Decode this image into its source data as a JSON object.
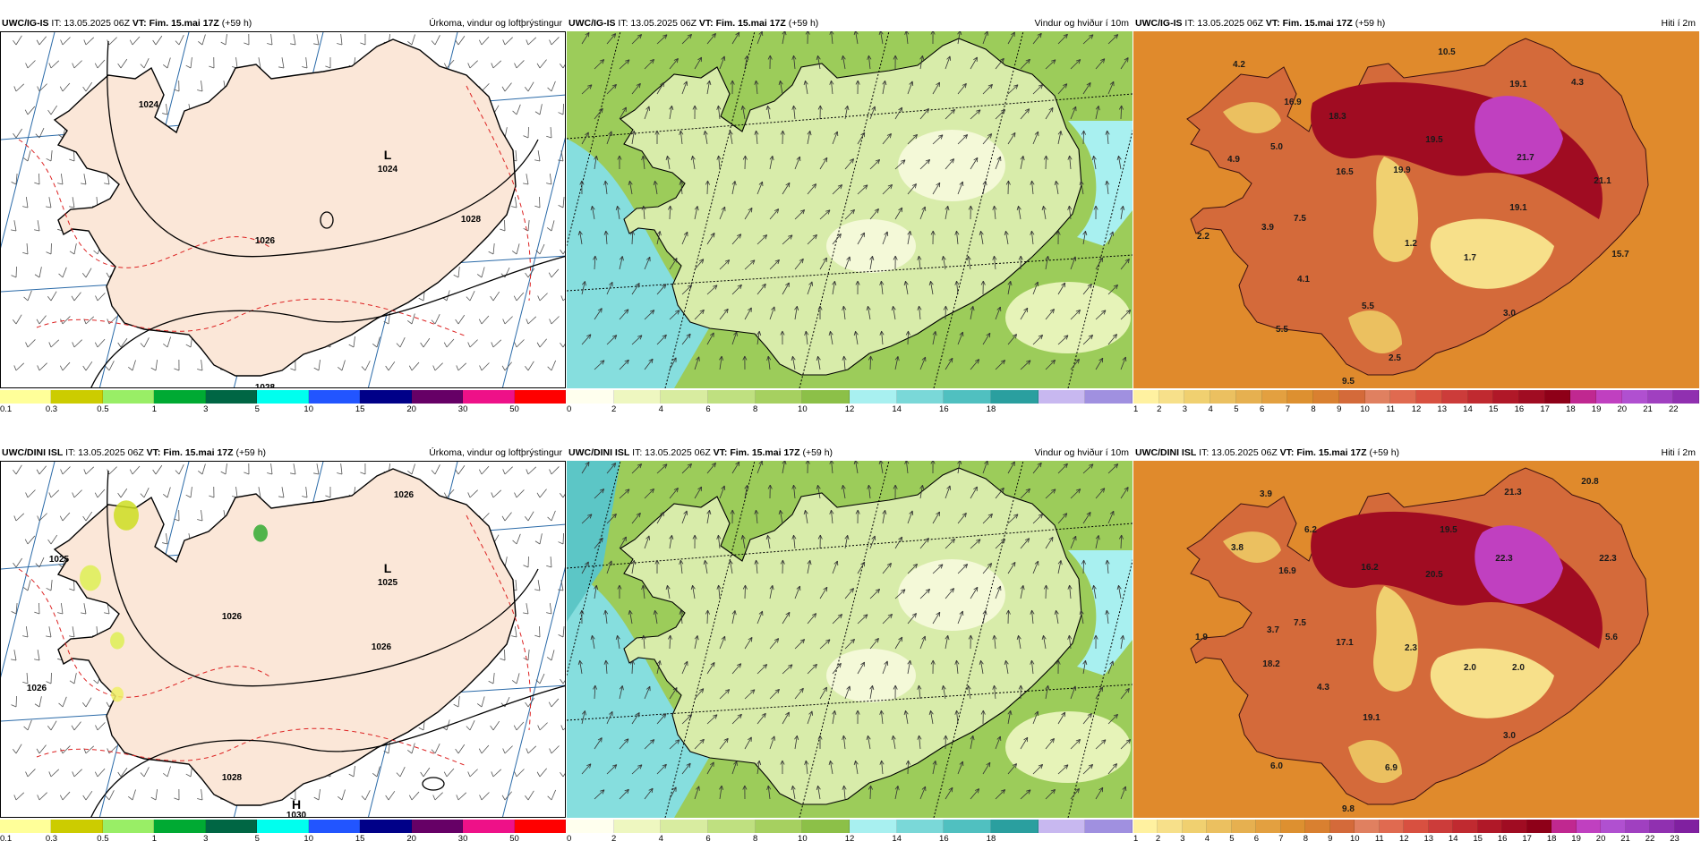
{
  "panels": [
    {
      "id": "p1",
      "model": "UWC/IG-IS",
      "it_label": "IT: 13.05.2025 06Z",
      "vt_label": "VT: Fim. 15.mai 17Z",
      "lead": "(+59 h)",
      "right_title": "Úrkoma, vindur og loftþrýstingur",
      "type": "precip",
      "bordered": true,
      "colors": [
        "#ffff99",
        "#cccc00",
        "#99ee66",
        "#00aa33",
        "#006644",
        "#00ffee",
        "#2255ff",
        "#000088",
        "#660066",
        "#ee1188",
        "#ff0000"
      ],
      "ticks": [
        "0.1",
        "0.3",
        "0.5",
        "1",
        "3",
        "5",
        "10",
        "15",
        "20",
        "30",
        "50"
      ],
      "labels": [
        {
          "t": "1024",
          "x": 165,
          "y": 84
        },
        {
          "t": "L",
          "x": 432,
          "y": 142,
          "big": true
        },
        {
          "t": "1024",
          "x": 432,
          "y": 156
        },
        {
          "t": "1026",
          "x": 295,
          "y": 236
        },
        {
          "t": "1028",
          "x": 295,
          "y": 400
        },
        {
          "t": "1028",
          "x": 525,
          "y": 212
        }
      ],
      "values": []
    },
    {
      "id": "p2",
      "model": "UWC/IG-IS",
      "it_label": "IT: 13.05.2025 06Z",
      "vt_label": "VT: Fim. 15.mai 17Z",
      "lead": "(+59 h)",
      "right_title": "Vindur og hviður í 10m",
      "type": "wind",
      "bordered": false,
      "colors": [
        "#ffffee",
        "#eef7c0",
        "#d8eca0",
        "#bfe080",
        "#a6d060",
        "#8cc048",
        "#a8f0f0",
        "#7ad8d8",
        "#50c0c0",
        "#2a9f9f",
        "#c8b8f0",
        "#a090e0"
      ],
      "ticks": [
        "0",
        "2",
        "4",
        "6",
        "8",
        "10",
        "12",
        "14",
        "16",
        "18"
      ],
      "labels": [],
      "values": []
    },
    {
      "id": "p3",
      "model": "UWC/IG-IS",
      "it_label": "IT: 13.05.2025 06Z",
      "vt_label": "VT: Fim. 15.mai 17Z",
      "lead": "(+59 h)",
      "right_title": "Hiti í 2m",
      "type": "temp",
      "bordered": false,
      "colors": [
        "#fff1a0",
        "#f7e08a",
        "#f0d070",
        "#ebc060",
        "#e6b050",
        "#e3a040",
        "#dd9030",
        "#d98030",
        "#d46a3a",
        "#e08060",
        "#e06a50",
        "#d85040",
        "#cc3c3a",
        "#c02a30",
        "#b01828",
        "#a00c22",
        "#8e0018",
        "#c02890",
        "#c040c0",
        "#b050d0",
        "#a040c0",
        "#9030b0"
      ],
      "ticks": [
        "1",
        "2",
        "3",
        "4",
        "5",
        "6",
        "7",
        "8",
        "9",
        "10",
        "11",
        "12",
        "13",
        "14",
        "15",
        "16",
        "17",
        "18",
        "19",
        "20",
        "21",
        "22"
      ],
      "labels": [],
      "values": [
        {
          "t": "10.5"
        },
        {
          "t": "4.2"
        },
        {
          "t": "16.9"
        },
        {
          "t": "19.1"
        },
        {
          "t": "4.3"
        },
        {
          "t": "18.3"
        },
        {
          "t": "5.0"
        },
        {
          "t": "4.9"
        },
        {
          "t": "16.5"
        },
        {
          "t": "19.9"
        },
        {
          "t": "19.5"
        },
        {
          "t": "21.7"
        },
        {
          "t": "21.1"
        },
        {
          "t": "3.9"
        },
        {
          "t": "7.5"
        },
        {
          "t": "2.2"
        },
        {
          "t": "1.2"
        },
        {
          "t": "19.1"
        },
        {
          "t": "1.7"
        },
        {
          "t": "15.7"
        },
        {
          "t": "4.1"
        },
        {
          "t": "5.5"
        },
        {
          "t": "3.0"
        },
        {
          "t": "5.5"
        },
        {
          "t": "2.5"
        },
        {
          "t": "9.5"
        }
      ]
    },
    {
      "id": "p4",
      "model": "UWC/DINI ISL",
      "it_label": "IT: 13.05.2025 06Z",
      "vt_label": "VT: Fim. 15.mai 17Z",
      "lead": "(+59 h)",
      "right_title": "Úrkoma, vindur og loftþrýstingur",
      "type": "precip",
      "bordered": true,
      "colors": [
        "#ffff99",
        "#cccc00",
        "#99ee66",
        "#00aa33",
        "#006644",
        "#00ffee",
        "#2255ff",
        "#000088",
        "#660066",
        "#ee1188",
        "#ff0000"
      ],
      "ticks": [
        "0.1",
        "0.3",
        "0.5",
        "1",
        "3",
        "5",
        "10",
        "15",
        "20",
        "30",
        "50"
      ],
      "labels": [
        {
          "t": "1025",
          "x": 65,
          "y": 112
        },
        {
          "t": "L",
          "x": 432,
          "y": 124,
          "big": true
        },
        {
          "t": "1025",
          "x": 432,
          "y": 138
        },
        {
          "t": "1026",
          "x": 258,
          "y": 176
        },
        {
          "t": "1026",
          "x": 425,
          "y": 210
        },
        {
          "t": "1028",
          "x": 258,
          "y": 356
        },
        {
          "t": "H",
          "x": 330,
          "y": 388,
          "big": true
        },
        {
          "t": "1030",
          "x": 330,
          "y": 398
        },
        {
          "t": "1026",
          "x": 450,
          "y": 40
        },
        {
          "t": "1026",
          "x": 40,
          "y": 256
        }
      ],
      "values": []
    },
    {
      "id": "p5",
      "model": "UWC/DINI ISL",
      "it_label": "IT: 13.05.2025 06Z",
      "vt_label": "VT: Fim. 15.mai 17Z",
      "lead": "(+59 h)",
      "right_title": "Vindur og hviður í 10m",
      "type": "wind",
      "bordered": false,
      "colors": [
        "#ffffee",
        "#eef7c0",
        "#d8eca0",
        "#bfe080",
        "#a6d060",
        "#8cc048",
        "#a8f0f0",
        "#7ad8d8",
        "#50c0c0",
        "#2a9f9f",
        "#c8b8f0",
        "#a090e0"
      ],
      "ticks": [
        "0",
        "2",
        "4",
        "6",
        "8",
        "10",
        "12",
        "14",
        "16",
        "18"
      ],
      "labels": [],
      "values": []
    },
    {
      "id": "p6",
      "model": "UWC/DINI ISL",
      "it_label": "IT: 13.05.2025 06Z",
      "vt_label": "VT: Fim. 15.mai 17Z",
      "lead": "(+59 h)",
      "right_title": "Hiti í 2m",
      "type": "temp",
      "bordered": false,
      "colors": [
        "#fff1a0",
        "#f7e08a",
        "#f0d070",
        "#ebc060",
        "#e6b050",
        "#e3a040",
        "#dd9030",
        "#d98030",
        "#d46a3a",
        "#e08060",
        "#e06a50",
        "#d85040",
        "#cc3c3a",
        "#c02a30",
        "#b01828",
        "#a00c22",
        "#8e0018",
        "#c02890",
        "#c040c0",
        "#b050d0",
        "#a040c0",
        "#9030b0",
        "#8020a0"
      ],
      "ticks": [
        "1",
        "2",
        "3",
        "4",
        "5",
        "6",
        "7",
        "8",
        "9",
        "10",
        "11",
        "12",
        "13",
        "14",
        "15",
        "16",
        "17",
        "18",
        "19",
        "20",
        "21",
        "22",
        "23"
      ],
      "labels": [],
      "values": [
        {
          "t": "20.8"
        },
        {
          "t": "3.9"
        },
        {
          "t": "21.3"
        },
        {
          "t": "6.2"
        },
        {
          "t": "19.5"
        },
        {
          "t": "3.8"
        },
        {
          "t": "22.3"
        },
        {
          "t": "16.2"
        },
        {
          "t": "22.3"
        },
        {
          "t": "16.9"
        },
        {
          "t": "20.5"
        },
        {
          "t": "3.7"
        },
        {
          "t": "7.5"
        },
        {
          "t": "1.9"
        },
        {
          "t": "17.1"
        },
        {
          "t": "2.3"
        },
        {
          "t": "5.6"
        },
        {
          "t": "18.2"
        },
        {
          "t": "2.0"
        },
        {
          "t": "2.0"
        },
        {
          "t": "4.3"
        },
        {
          "t": "19.1"
        },
        {
          "t": "3.0"
        },
        {
          "t": "6.0"
        },
        {
          "t": "6.9"
        },
        {
          "t": "9.8"
        }
      ]
    }
  ]
}
